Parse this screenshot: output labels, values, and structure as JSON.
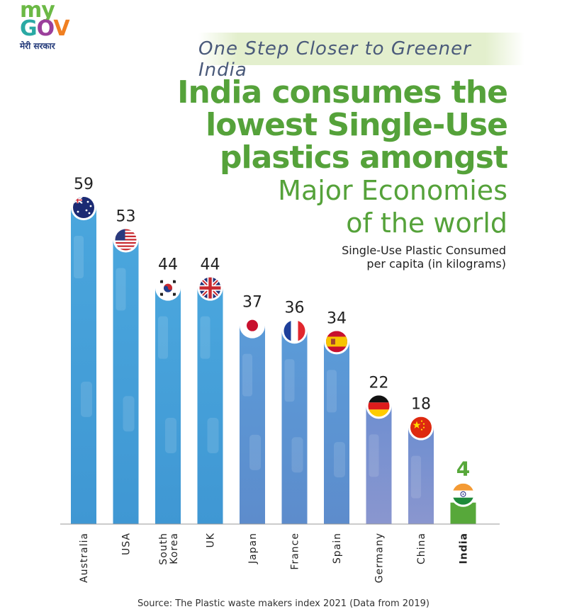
{
  "logo": {
    "my": "my",
    "gov_g": "G",
    "gov_o": "O",
    "gov_v": "V",
    "hindi": "मेरी सरकार"
  },
  "tagline": "One Step Closer to Greener India",
  "headline": {
    "bold_lines": [
      "India consumes the",
      "lowest Single-Use",
      "plastics amongst"
    ],
    "light_lines": [
      "Major Economies",
      "of the world"
    ]
  },
  "unit_label": [
    "Single-Use Plastic Consumed",
    "per capita (in kilograms)"
  ],
  "colors": {
    "green": "#55a23a",
    "bar_blue": "#4a9fd8",
    "bar_purple": "#7f8fcf",
    "india_green": "#57a83a"
  },
  "chart_data": {
    "type": "bar",
    "title": "India consumes the lowest Single-Use plastics amongst Major Economies of the world",
    "ylabel": "Single-Use Plastic Consumed per capita (in kilograms)",
    "xlabel": "",
    "categories": [
      "Australia",
      "USA",
      "South Korea",
      "UK",
      "Japan",
      "France",
      "Spain",
      "Germany",
      "China",
      "India"
    ],
    "values": [
      59,
      53,
      44,
      44,
      37,
      36,
      34,
      22,
      18,
      4
    ],
    "flags": [
      "australia-flag",
      "usa-flag",
      "south-korea-flag",
      "uk-flag",
      "japan-flag",
      "france-flag",
      "spain-flag",
      "germany-flag",
      "china-flag",
      "india-flag"
    ],
    "highlight": "India",
    "ylim": [
      0,
      59
    ],
    "grid": false,
    "legend": "none"
  },
  "source": "Source: The Plastic waste makers index 2021 (Data from 2019)"
}
